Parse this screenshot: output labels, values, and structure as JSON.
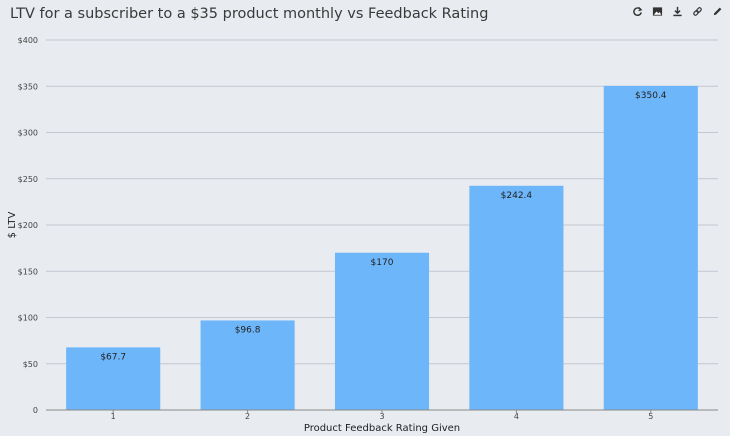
{
  "title": "LTV for a subscriber to a $35 product monthly vs Feedback Rating",
  "toolbar": {
    "icons": [
      "refresh-icon",
      "image-icon",
      "download-icon",
      "link-icon",
      "edit-icon"
    ]
  },
  "colors": {
    "background": "#e8ebf0",
    "bar": "#6db6fa",
    "grid": "#c4c8cf"
  },
  "chart_data": {
    "type": "bar",
    "categories": [
      "1",
      "2",
      "3",
      "4",
      "5"
    ],
    "values": [
      67.7,
      96.8,
      170,
      242.4,
      350.4
    ],
    "data_labels": [
      "$67.7",
      "$96.8",
      "$170",
      "$242.4",
      "$350.4"
    ],
    "title": "LTV for a subscriber to a $35 product monthly vs Feedback Rating",
    "xlabel": "Product Feedback Rating Given",
    "ylabel": "$ LTV",
    "ylim": [
      0,
      400
    ],
    "yticks": [
      0,
      50,
      100,
      150,
      200,
      250,
      300,
      350,
      400
    ],
    "ytick_labels": [
      "0",
      "$50",
      "$100",
      "$150",
      "$200",
      "$250",
      "$300",
      "$350",
      "$400"
    ],
    "grid": true,
    "legend": "none"
  }
}
